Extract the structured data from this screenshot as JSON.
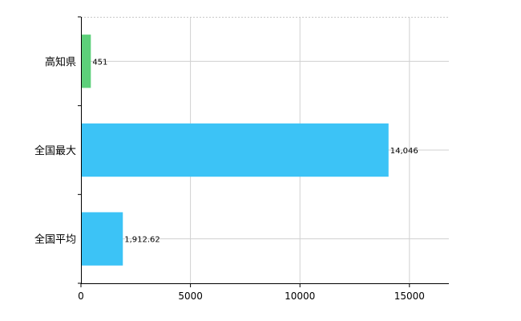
{
  "chart_data": {
    "type": "bar",
    "orientation": "horizontal",
    "categories": [
      "高知県",
      "全国最大",
      "全国平均"
    ],
    "values": [
      451,
      14046,
      1912.62
    ],
    "data_labels": [
      "451",
      "14,046",
      "1,912.62"
    ],
    "bar_colors": [
      "#5dd07a",
      "#3cc3f6",
      "#3cc3f6"
    ],
    "xlim": [
      0,
      16800
    ],
    "xticks": [
      0,
      5000,
      10000,
      15000
    ],
    "xtick_labels": [
      "0",
      "5000",
      "10000",
      "15000"
    ],
    "grid": true,
    "legend": "none",
    "title": "",
    "xlabel": "",
    "ylabel": ""
  }
}
